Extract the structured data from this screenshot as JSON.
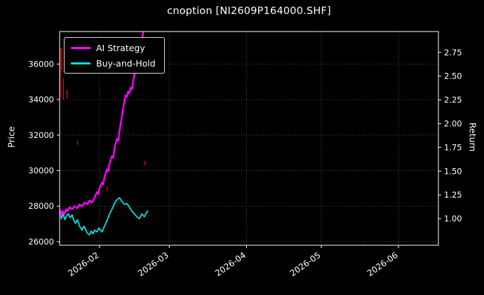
{
  "chart_data": {
    "type": "line",
    "title": "cnoption [NI2609P164000.SHF]",
    "left_axis": {
      "label": "Price",
      "ticks": [
        26000,
        28000,
        30000,
        32000,
        34000,
        36000
      ],
      "domain": [
        25800,
        37830
      ]
    },
    "right_axis": {
      "label": "Return",
      "ticks": [
        1.0,
        1.25,
        1.5,
        1.75,
        2.0,
        2.25,
        2.5,
        2.75
      ],
      "domain": [
        0.72,
        2.97
      ]
    },
    "x_axis": {
      "domain": [
        0,
        152
      ],
      "ticks": [
        {
          "day": 16,
          "label": "2026-02"
        },
        {
          "day": 44,
          "label": "2026-03"
        },
        {
          "day": 75,
          "label": "2026-04"
        },
        {
          "day": 105,
          "label": "2026-05"
        },
        {
          "day": 136,
          "label": "2026-06"
        }
      ]
    },
    "grid": true,
    "legend_position": "upper-left",
    "series": [
      {
        "name": "AI Strategy",
        "color": "#ff00ff",
        "axis": "return",
        "points": [
          [
            0,
            1.1
          ],
          [
            0.5,
            1.03
          ],
          [
            1,
            1.08
          ],
          [
            2,
            1.05
          ],
          [
            2.5,
            1.1
          ],
          [
            3,
            1.08
          ],
          [
            4,
            1.12
          ],
          [
            5,
            1.1
          ],
          [
            6,
            1.13
          ],
          [
            7,
            1.11
          ],
          [
            8,
            1.15
          ],
          [
            9,
            1.13
          ],
          [
            10,
            1.17
          ],
          [
            11,
            1.15
          ],
          [
            12,
            1.19
          ],
          [
            13,
            1.17
          ],
          [
            14,
            1.22
          ],
          [
            15,
            1.28
          ],
          [
            15.5,
            1.26
          ],
          [
            16,
            1.32
          ],
          [
            17,
            1.38
          ],
          [
            17.5,
            1.36
          ],
          [
            18,
            1.44
          ],
          [
            19,
            1.52
          ],
          [
            19.5,
            1.5
          ],
          [
            20,
            1.58
          ],
          [
            21,
            1.66
          ],
          [
            21.5,
            1.64
          ],
          [
            22,
            1.74
          ],
          [
            23,
            1.84
          ],
          [
            23.5,
            1.82
          ],
          [
            24,
            1.92
          ],
          [
            24.5,
            2.0
          ],
          [
            25,
            2.08
          ],
          [
            25.5,
            2.16
          ],
          [
            26,
            2.24
          ],
          [
            26.5,
            2.3
          ],
          [
            27,
            2.28
          ],
          [
            27.5,
            2.34
          ],
          [
            28,
            2.32
          ],
          [
            28.5,
            2.38
          ],
          [
            29,
            2.36
          ],
          [
            29.5,
            2.44
          ],
          [
            30,
            2.52
          ],
          [
            30.5,
            2.58
          ],
          [
            31,
            2.56
          ],
          [
            31.5,
            2.62
          ],
          [
            32,
            2.68
          ],
          [
            32.5,
            2.76
          ],
          [
            33,
            2.86
          ],
          [
            33.5,
            2.96
          ],
          [
            34,
            3.05
          ]
        ]
      },
      {
        "name": "Buy-and-Hold",
        "color": "#00e0e0",
        "axis": "return",
        "points": [
          [
            0,
            1.1
          ],
          [
            0.7,
            1.0
          ],
          [
            1.4,
            1.05
          ],
          [
            2.1,
            0.99
          ],
          [
            2.8,
            1.03
          ],
          [
            3.5,
            1.05
          ],
          [
            4.2,
            1.01
          ],
          [
            5,
            1.04
          ],
          [
            5.7,
            0.98
          ],
          [
            6.4,
            0.95
          ],
          [
            7.1,
            0.99
          ],
          [
            8,
            0.92
          ],
          [
            9,
            0.88
          ],
          [
            9.7,
            0.92
          ],
          [
            10.4,
            0.89
          ],
          [
            11,
            0.85
          ],
          [
            12,
            0.83
          ],
          [
            12.7,
            0.87
          ],
          [
            13.4,
            0.84
          ],
          [
            14,
            0.88
          ],
          [
            15,
            0.86
          ],
          [
            15.7,
            0.9
          ],
          [
            16.4,
            0.88
          ],
          [
            17,
            0.86
          ],
          [
            18,
            0.92
          ],
          [
            19,
            0.98
          ],
          [
            20,
            1.05
          ],
          [
            21,
            1.1
          ],
          [
            22,
            1.16
          ],
          [
            23,
            1.2
          ],
          [
            24,
            1.22
          ],
          [
            25,
            1.18
          ],
          [
            26,
            1.15
          ],
          [
            27,
            1.16
          ],
          [
            28,
            1.12
          ],
          [
            29,
            1.08
          ],
          [
            30,
            1.05
          ],
          [
            31,
            1.02
          ],
          [
            32,
            1.0
          ],
          [
            33,
            1.05
          ],
          [
            34,
            1.02
          ],
          [
            34.7,
            1.06
          ],
          [
            35.4,
            1.08
          ]
        ]
      }
    ],
    "price_marks": {
      "name": "price-candles",
      "color": "#ff0000",
      "axis": "price",
      "segments": [
        [
          0.2,
          34100,
          36900
        ],
        [
          0.8,
          35600,
          36900
        ],
        [
          1.5,
          34000,
          35200
        ],
        [
          3.0,
          34050,
          34550
        ],
        [
          7.2,
          31450,
          31700
        ],
        [
          19.0,
          28850,
          29100
        ],
        [
          34.0,
          30300,
          30550
        ]
      ]
    },
    "colors": {
      "background": "#000000",
      "text": "#ffffff",
      "grid": "#6a6a6a",
      "spine": "#ffffff"
    }
  }
}
